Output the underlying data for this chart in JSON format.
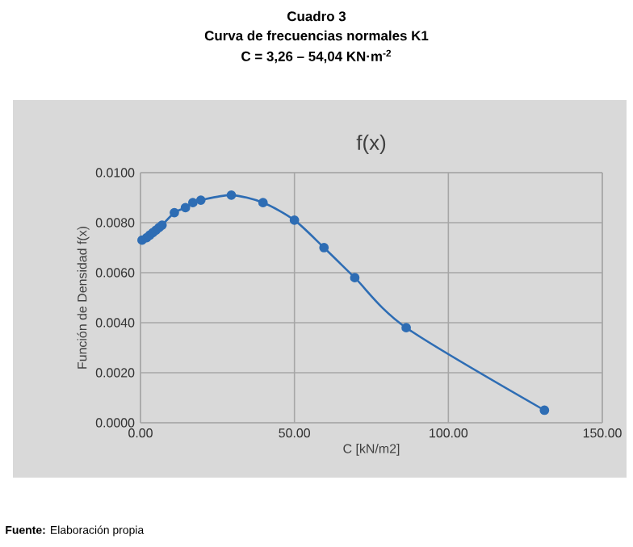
{
  "chart_data": {
    "type": "line",
    "title": "f(x)",
    "xlabel": "C [kN/m2]",
    "ylabel": "Función de Densidad f(x)",
    "annotations": [
      "**Cuadro 3**",
      "**Curva de frecuencias normales K1**",
      "**C = 3,26 – 54,04 KN·m$^{-2}$**",
      "**Fuente:** Elaboración propia"
    ],
    "series": [
      {
        "color": "#2e6db4",
        "x": [
          0.5,
          2,
          3,
          4,
          5,
          6,
          7,
          11,
          13.5,
          14.6,
          17,
          19.6,
          29.5,
          39.8,
          50,
          59.6,
          69.6,
          86.3,
          131.2
        ],
        "values": [
          0.0073,
          0.0074,
          0.0075,
          0.0076,
          0.0077,
          0.0078,
          0.0079,
          0.0084,
          null,
          0.0086,
          0.0088,
          0.0089,
          0.0091,
          0.0088,
          0.0081,
          0.007,
          0.0058,
          0.0038,
          0.0005
        ]
      }
    ],
    "xlim": [
      0,
      150
    ],
    "ylim": [
      0,
      0.01
    ],
    "xticks": [
      {
        "value": 0,
        "label": "0.00"
      },
      {
        "value": 50,
        "label": "50.00"
      },
      {
        "value": 100,
        "label": "100.00"
      },
      {
        "value": 150,
        "label": "150.00"
      }
    ],
    "yticks": [
      {
        "value": 0,
        "label": "0.0000"
      },
      {
        "value": 0.002,
        "label": "0.0020"
      },
      {
        "value": 0.004,
        "label": "0.0040"
      },
      {
        "value": 0.006,
        "label": "0.0060"
      },
      {
        "value": 0.008,
        "label": "0.0080"
      },
      {
        "value": 0.01,
        "label": "0.0100"
      }
    ],
    "grid": true,
    "marker": "circle",
    "line_style": "solid"
  }
}
